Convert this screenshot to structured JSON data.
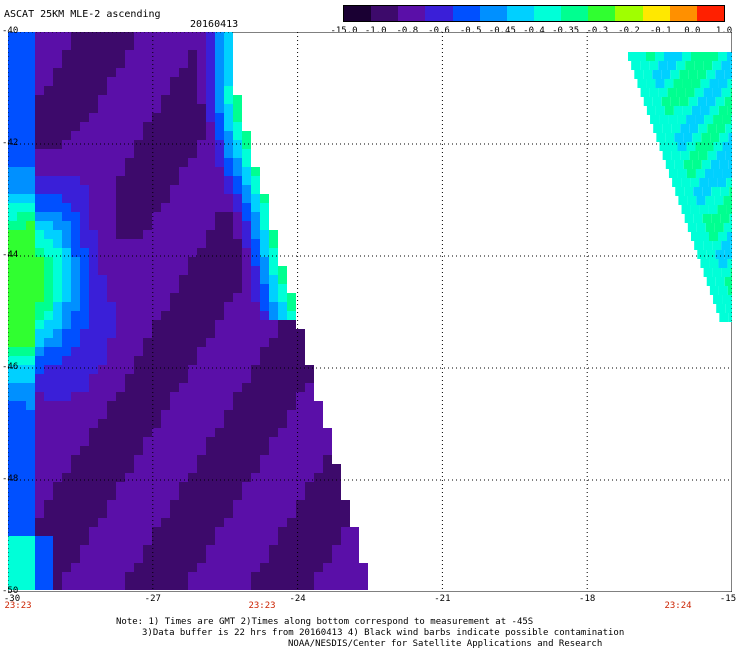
{
  "title": "ASCAT 25KM MLE-2 ascending",
  "date": "20160413",
  "colorbar": {
    "labels": [
      "-15.0",
      "-1.0",
      "-0.8",
      "-0.6",
      "-0.5",
      "-0.45",
      "-0.4",
      "-0.35",
      "-0.3",
      "-0.2",
      "-0.1",
      "0.0",
      "1.0"
    ],
    "colors": [
      "#1a0033",
      "#3d0a6b",
      "#5a0fa8",
      "#3a1fd8",
      "#0050ff",
      "#0090ff",
      "#00d0ff",
      "#00ffd8",
      "#00ff90",
      "#30ff30",
      "#a0ff00",
      "#ffe800",
      "#ff9000",
      "#ff2000"
    ]
  },
  "lat_labels": [
    "-40",
    "-42",
    "-44",
    "-46",
    "-48",
    "-50"
  ],
  "lon_labels": [
    "-30",
    "-27",
    "-24",
    "-21",
    "-18",
    "-15"
  ],
  "time_labels": [
    "23:23",
    "23:23",
    "23:24"
  ],
  "notes": [
    "Note: 1) Times are GMT 2)Times along bottom correspond to measurement at -45S",
    "3)Data buffer is 22 hrs from 20160413 4) Black wind barbs indicate possible contamination",
    "NOAA/NESDIS/Center for Satellite Applications and Research"
  ],
  "map": {
    "lon_range": [
      -30,
      -15
    ],
    "lat_range": [
      -50,
      -40
    ],
    "grid": "dotted"
  }
}
